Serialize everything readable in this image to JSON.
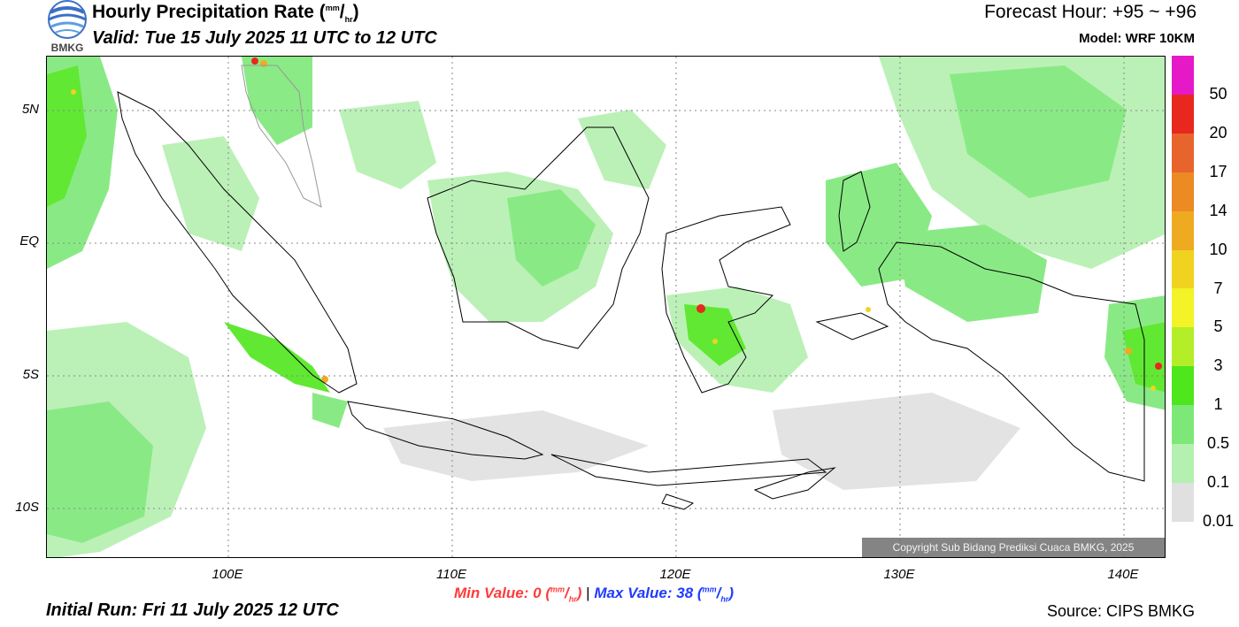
{
  "header": {
    "title": "Hourly Precipitation Rate (",
    "title_unit_sup": "mm",
    "title_unit_sub": "hr",
    "title_close": ")",
    "valid": "Valid: Tue 15 July 2025 11 UTC to 12 UTC",
    "forecast_hour": "Forecast Hour: +95 ~ +96",
    "model": "Model: WRF 10KM",
    "logo_text": "BMKG"
  },
  "map": {
    "lat_labels": [
      "5N",
      "EQ",
      "5S",
      "10S"
    ],
    "lon_labels": [
      "100E",
      "110E",
      "120E",
      "130E",
      "140E"
    ],
    "copyright": "Copyright Sub Bidang Prediksi Cuaca BMKG, 2025"
  },
  "footer": {
    "min_label": "Min Value:",
    "min_value": "0",
    "separator": "|",
    "max_label": "Max Value:",
    "max_value": "38",
    "unit_sup": "mm",
    "unit_sub": "hr",
    "initial_run": "Initial Run: Fri 11 July 2025 12 UTC",
    "source": "Source: CIPS BMKG"
  },
  "colorbar": {
    "labels": [
      "50",
      "20",
      "17",
      "14",
      "10",
      "7",
      "5",
      "3",
      "1",
      "0.5",
      "0.1",
      "0.01"
    ],
    "colors": [
      "#e619c8",
      "#e8281e",
      "#e8642d",
      "#ec8a24",
      "#eeab22",
      "#f0d320",
      "#f3f328",
      "#b4ee28",
      "#50e61e",
      "#7de878",
      "#b4f0b0",
      "#e0e0e0"
    ]
  },
  "colors": {
    "min_value": "#ff3b3b",
    "max_value": "#1f3cff",
    "coastline": "#000000"
  }
}
